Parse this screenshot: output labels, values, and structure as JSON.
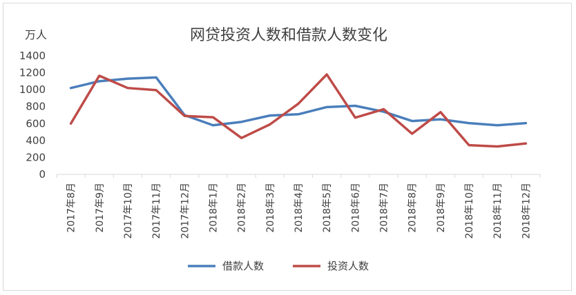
{
  "chart_data": {
    "type": "line",
    "title": "网贷投资人数和借款人数变化",
    "ylabel": "万人",
    "xlabel": "",
    "ylim": [
      0,
      1400
    ],
    "yticks": [
      0,
      200,
      400,
      600,
      800,
      1000,
      1200,
      1400
    ],
    "categories": [
      "2017年8月",
      "2017年9月",
      "2017年10月",
      "2017年11月",
      "2017年12月",
      "2018年1月",
      "2018年2月",
      "2018年3月",
      "2018年4月",
      "2018年5月",
      "2018年6月",
      "2018年7月",
      "2018年8月",
      "2018年9月",
      "2018年10月",
      "2018年11月",
      "2018年12月"
    ],
    "series": [
      {
        "name": "借款人数",
        "color": "#4a7ebb",
        "values": [
          1020,
          1100,
          1130,
          1145,
          700,
          580,
          620,
          695,
          710,
          795,
          810,
          740,
          630,
          650,
          605,
          580,
          605
        ]
      },
      {
        "name": "投资人数",
        "color": "#be4b48",
        "values": [
          600,
          1165,
          1020,
          995,
          690,
          675,
          430,
          590,
          835,
          1180,
          670,
          770,
          480,
          735,
          345,
          330,
          365
        ]
      }
    ],
    "grid": false,
    "legend": "bottom"
  }
}
